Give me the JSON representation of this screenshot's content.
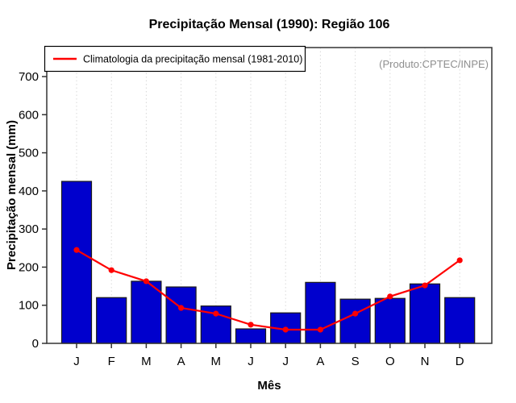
{
  "chart_data": {
    "type": "bar",
    "title": "Precipitação Mensal (1990): Região 106",
    "xlabel": "Mês",
    "ylabel": "Precipitação mensal (mm)",
    "categories": [
      "J",
      "F",
      "M",
      "A",
      "M",
      "J",
      "J",
      "A",
      "S",
      "O",
      "N",
      "D"
    ],
    "series": [
      {
        "type": "bar",
        "values": [
          425,
          120,
          163,
          148,
          98,
          38,
          80,
          160,
          116,
          118,
          156,
          120
        ]
      },
      {
        "type": "line",
        "name": "Climatologia da precipitação mensal (1981-2010)",
        "values": [
          245,
          192,
          163,
          93,
          78,
          49,
          36,
          36,
          78,
          123,
          152,
          218
        ]
      }
    ],
    "yticks": [
      0,
      100,
      200,
      300,
      400,
      500,
      600,
      700
    ],
    "ylim": [
      0,
      776
    ],
    "grid": "vertical-dotted",
    "legend_position": "top-left",
    "annotation": "(Produto:CPTEC/INPE)"
  },
  "legend": {
    "label": "Climatologia da precipitação mensal (1981-2010)"
  },
  "annotation": {
    "text": "(Produto:CPTEC/INPE)"
  },
  "colors": {
    "bar_fill": "#0000CD",
    "bar_border": "#1a1a1a",
    "line": "#FF0000",
    "grid": "#d9d9d9",
    "axis": "#333333",
    "annotation_text": "#8f8f8f",
    "legend_border": "#000000"
  }
}
